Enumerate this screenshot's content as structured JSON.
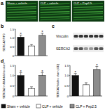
{
  "panel_labels": [
    "a",
    "b",
    "c",
    "d"
  ],
  "panel_a": {
    "labels": [
      "Sham + vehicle",
      "CLP + vehicle",
      "CLP + Pep2.5"
    ]
  },
  "panel_c": {
    "rows": [
      "Vinculin",
      "SERCA2"
    ]
  },
  "figure_legend": {
    "labels": [
      "Sham + vehicle",
      "CLP + vehicle",
      "CLP + Pep2.5"
    ],
    "colors": [
      "#111111",
      "#ffffff",
      "#8c8c8c"
    ]
  },
  "chart_data": [
    {
      "type": "bar",
      "y_label": "SERCA2 F/F0",
      "categories": [
        null,
        null,
        null
      ],
      "values": [
        1.05,
        0.55,
        1.15
      ],
      "errors": [
        0.12,
        0.1,
        0.12
      ],
      "significance": [
        "*",
        null,
        "*"
      ],
      "colors": [
        "#111111",
        "#ffffff",
        "#8c8c8c"
      ],
      "ylim": [
        0,
        1.5
      ],
      "yticks": [
        0,
        0.5,
        {
          "value": 1,
          "label": "1.0"
        },
        1.5
      ],
      "tick_labels": "y"
    },
    {
      "type": "bar",
      "y_label": "SERCA2 mRNA fold to sham",
      "categories": [
        null,
        null,
        null
      ],
      "values": [
        1.0,
        0.35,
        1.0
      ],
      "errors": [
        0.15,
        0.1,
        0.15
      ],
      "significance": [
        "*",
        null,
        "*"
      ],
      "colors": [
        "#111111",
        "#ffffff",
        "#8c8c8c"
      ],
      "ylim": [
        0,
        1.5
      ],
      "yticks": [
        0,
        0.5,
        {
          "value": 1,
          "label": "1.0"
        },
        1.5
      ],
      "tick_labels": "y"
    },
    {
      "type": "bar",
      "y_label": "SERCA2 fold to sham (OD)",
      "categories": [
        null,
        null,
        null
      ],
      "values": [
        1.0,
        0.55,
        1.3
      ],
      "errors": [
        0.1,
        0.1,
        0.15
      ],
      "significance": [
        "*",
        null,
        "*"
      ],
      "colors": [
        "#111111",
        "#ffffff",
        "#8c8c8c"
      ],
      "ylim": [
        0,
        1.5
      ],
      "yticks": [
        0,
        0.5,
        {
          "value": 1,
          "label": "1.0"
        },
        1.5
      ],
      "tick_labels": "y"
    }
  ]
}
